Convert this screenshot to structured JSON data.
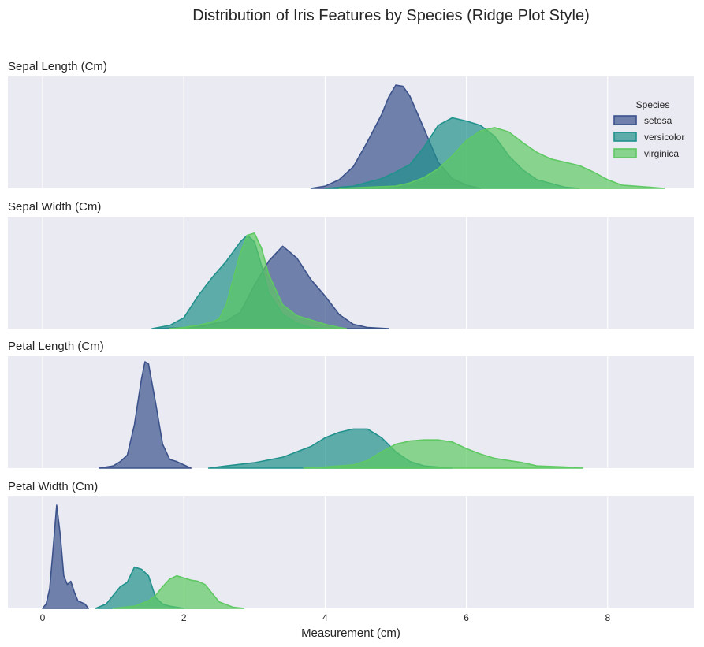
{
  "chart_data": {
    "type": "area",
    "title": "Distribution of Iris Features by Species (Ridge Plot Style)",
    "xlabel": "Measurement (cm)",
    "xlim": [
      -0.6,
      9.2
    ],
    "xticks": [
      0,
      2,
      4,
      6,
      8
    ],
    "grid": true,
    "legend": {
      "title": "Species",
      "placement": "top-right of first panel",
      "entries": [
        "setosa",
        "versicolor",
        "virginica"
      ]
    },
    "colors": {
      "setosa": "#3b528b",
      "versicolor": "#21918c",
      "virginica": "#5ec962"
    },
    "panels": [
      {
        "title": "Sepal Length (Cm)",
        "series": [
          {
            "name": "setosa",
            "points": [
              [
                3.8,
                0.0
              ],
              [
                4.0,
                0.02
              ],
              [
                4.2,
                0.08
              ],
              [
                4.4,
                0.2
              ],
              [
                4.6,
                0.43
              ],
              [
                4.8,
                0.68
              ],
              [
                4.9,
                0.84
              ],
              [
                5.0,
                0.95
              ],
              [
                5.1,
                0.94
              ],
              [
                5.2,
                0.85
              ],
              [
                5.4,
                0.55
              ],
              [
                5.6,
                0.24
              ],
              [
                5.8,
                0.09
              ],
              [
                6.0,
                0.03
              ],
              [
                6.2,
                0.0
              ]
            ]
          },
          {
            "name": "versicolor",
            "points": [
              [
                4.0,
                0.0
              ],
              [
                4.4,
                0.02
              ],
              [
                4.8,
                0.09
              ],
              [
                5.0,
                0.15
              ],
              [
                5.2,
                0.22
              ],
              [
                5.4,
                0.38
              ],
              [
                5.6,
                0.58
              ],
              [
                5.8,
                0.65
              ],
              [
                6.0,
                0.62
              ],
              [
                6.2,
                0.58
              ],
              [
                6.4,
                0.48
              ],
              [
                6.6,
                0.3
              ],
              [
                6.8,
                0.17
              ],
              [
                7.0,
                0.08
              ],
              [
                7.4,
                0.01
              ],
              [
                7.6,
                0.0
              ]
            ]
          },
          {
            "name": "virginica",
            "points": [
              [
                4.2,
                0.0
              ],
              [
                4.6,
                0.01
              ],
              [
                5.0,
                0.02
              ],
              [
                5.2,
                0.05
              ],
              [
                5.4,
                0.1
              ],
              [
                5.6,
                0.18
              ],
              [
                5.8,
                0.3
              ],
              [
                6.0,
                0.44
              ],
              [
                6.2,
                0.53
              ],
              [
                6.4,
                0.56
              ],
              [
                6.6,
                0.52
              ],
              [
                6.8,
                0.42
              ],
              [
                7.0,
                0.33
              ],
              [
                7.2,
                0.27
              ],
              [
                7.6,
                0.21
              ],
              [
                7.8,
                0.15
              ],
              [
                8.0,
                0.08
              ],
              [
                8.2,
                0.03
              ],
              [
                8.6,
                0.01
              ],
              [
                8.8,
                0.0
              ]
            ]
          }
        ]
      },
      {
        "title": "Sepal Width (Cm)",
        "series": [
          {
            "name": "setosa",
            "points": [
              [
                1.6,
                0.0
              ],
              [
                2.0,
                0.01
              ],
              [
                2.3,
                0.03
              ],
              [
                2.6,
                0.07
              ],
              [
                2.8,
                0.15
              ],
              [
                3.0,
                0.4
              ],
              [
                3.2,
                0.62
              ],
              [
                3.4,
                0.76
              ],
              [
                3.6,
                0.65
              ],
              [
                3.8,
                0.45
              ],
              [
                4.0,
                0.3
              ],
              [
                4.2,
                0.13
              ],
              [
                4.4,
                0.04
              ],
              [
                4.6,
                0.01
              ],
              [
                4.9,
                0.0
              ]
            ]
          },
          {
            "name": "versicolor",
            "points": [
              [
                1.55,
                0.0
              ],
              [
                1.8,
                0.03
              ],
              [
                2.0,
                0.1
              ],
              [
                2.2,
                0.3
              ],
              [
                2.4,
                0.47
              ],
              [
                2.6,
                0.62
              ],
              [
                2.8,
                0.8
              ],
              [
                2.9,
                0.86
              ],
              [
                3.0,
                0.8
              ],
              [
                3.1,
                0.58
              ],
              [
                3.2,
                0.33
              ],
              [
                3.4,
                0.13
              ],
              [
                3.6,
                0.05
              ],
              [
                3.8,
                0.01
              ],
              [
                4.0,
                0.0
              ]
            ]
          },
          {
            "name": "virginica",
            "points": [
              [
                1.8,
                0.0
              ],
              [
                2.0,
                0.01
              ],
              [
                2.2,
                0.03
              ],
              [
                2.4,
                0.06
              ],
              [
                2.5,
                0.09
              ],
              [
                2.6,
                0.22
              ],
              [
                2.8,
                0.7
              ],
              [
                2.9,
                0.86
              ],
              [
                3.0,
                0.88
              ],
              [
                3.1,
                0.74
              ],
              [
                3.2,
                0.5
              ],
              [
                3.4,
                0.22
              ],
              [
                3.6,
                0.12
              ],
              [
                3.8,
                0.08
              ],
              [
                4.0,
                0.04
              ],
              [
                4.2,
                0.01
              ],
              [
                4.3,
                0.0
              ]
            ]
          }
        ]
      },
      {
        "title": "Petal Length (Cm)",
        "series": [
          {
            "name": "setosa",
            "points": [
              [
                0.8,
                0.0
              ],
              [
                1.0,
                0.02
              ],
              [
                1.1,
                0.06
              ],
              [
                1.2,
                0.12
              ],
              [
                1.3,
                0.4
              ],
              [
                1.4,
                0.82
              ],
              [
                1.45,
                0.98
              ],
              [
                1.5,
                0.96
              ],
              [
                1.6,
                0.6
              ],
              [
                1.7,
                0.22
              ],
              [
                1.8,
                0.08
              ],
              [
                1.9,
                0.06
              ],
              [
                2.0,
                0.03
              ],
              [
                2.1,
                0.0
              ]
            ]
          },
          {
            "name": "versicolor",
            "points": [
              [
                2.35,
                0.0
              ],
              [
                2.6,
                0.02
              ],
              [
                3.0,
                0.05
              ],
              [
                3.4,
                0.1
              ],
              [
                3.6,
                0.15
              ],
              [
                3.8,
                0.2
              ],
              [
                4.0,
                0.28
              ],
              [
                4.2,
                0.33
              ],
              [
                4.4,
                0.36
              ],
              [
                4.6,
                0.36
              ],
              [
                4.8,
                0.28
              ],
              [
                5.0,
                0.15
              ],
              [
                5.2,
                0.06
              ],
              [
                5.4,
                0.02
              ],
              [
                5.8,
                0.0
              ]
            ]
          },
          {
            "name": "virginica",
            "points": [
              [
                3.7,
                0.0
              ],
              [
                4.0,
                0.01
              ],
              [
                4.4,
                0.03
              ],
              [
                4.6,
                0.07
              ],
              [
                4.8,
                0.15
              ],
              [
                5.0,
                0.22
              ],
              [
                5.2,
                0.25
              ],
              [
                5.4,
                0.26
              ],
              [
                5.6,
                0.26
              ],
              [
                5.8,
                0.24
              ],
              [
                6.0,
                0.18
              ],
              [
                6.2,
                0.13
              ],
              [
                6.4,
                0.09
              ],
              [
                6.6,
                0.07
              ],
              [
                6.8,
                0.05
              ],
              [
                7.0,
                0.02
              ],
              [
                7.4,
                0.01
              ],
              [
                7.65,
                0.0
              ]
            ]
          }
        ]
      },
      {
        "title": "Petal Width (Cm)",
        "series": [
          {
            "name": "setosa",
            "points": [
              [
                0.0,
                0.0
              ],
              [
                0.05,
                0.04
              ],
              [
                0.1,
                0.18
              ],
              [
                0.15,
                0.55
              ],
              [
                0.2,
                0.95
              ],
              [
                0.25,
                0.68
              ],
              [
                0.3,
                0.3
              ],
              [
                0.35,
                0.22
              ],
              [
                0.4,
                0.25
              ],
              [
                0.45,
                0.15
              ],
              [
                0.5,
                0.07
              ],
              [
                0.6,
                0.04
              ],
              [
                0.65,
                0.0
              ]
            ]
          },
          {
            "name": "versicolor",
            "points": [
              [
                0.75,
                0.0
              ],
              [
                0.9,
                0.04
              ],
              [
                1.0,
                0.12
              ],
              [
                1.1,
                0.2
              ],
              [
                1.2,
                0.24
              ],
              [
                1.3,
                0.38
              ],
              [
                1.4,
                0.36
              ],
              [
                1.5,
                0.3
              ],
              [
                1.6,
                0.1
              ],
              [
                1.7,
                0.04
              ],
              [
                1.8,
                0.02
              ],
              [
                2.0,
                0.0
              ]
            ]
          },
          {
            "name": "virginica",
            "points": [
              [
                1.0,
                0.0
              ],
              [
                1.3,
                0.02
              ],
              [
                1.5,
                0.07
              ],
              [
                1.6,
                0.12
              ],
              [
                1.7,
                0.2
              ],
              [
                1.8,
                0.27
              ],
              [
                1.9,
                0.3
              ],
              [
                2.0,
                0.28
              ],
              [
                2.1,
                0.26
              ],
              [
                2.2,
                0.25
              ],
              [
                2.3,
                0.22
              ],
              [
                2.4,
                0.14
              ],
              [
                2.5,
                0.06
              ],
              [
                2.7,
                0.01
              ],
              [
                2.85,
                0.0
              ]
            ]
          }
        ]
      }
    ]
  }
}
